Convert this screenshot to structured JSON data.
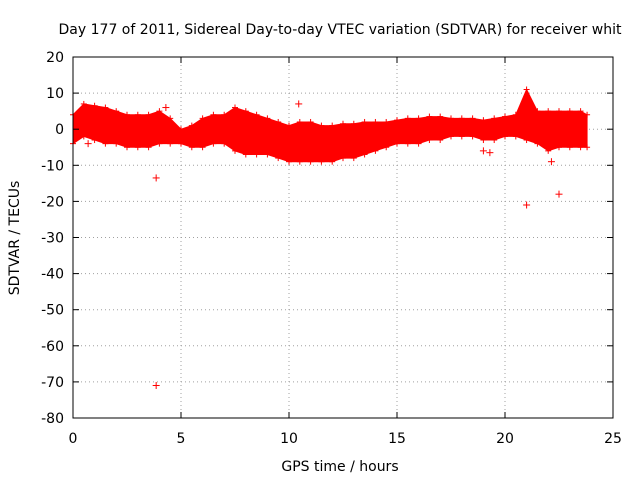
{
  "chart_data": {
    "type": "scatter",
    "title": "Day 177 of 2011, Sidereal Day-to-day VTEC variation (SDTVAR) for receiver whit",
    "xlabel": "GPS time / hours",
    "ylabel": "SDTVAR / TECUs",
    "xlim": [
      0,
      25
    ],
    "ylim": [
      -80,
      20
    ],
    "x_ticks": [
      0,
      5,
      10,
      15,
      20,
      25
    ],
    "y_ticks": [
      -80,
      -70,
      -60,
      -50,
      -40,
      -30,
      -20,
      -10,
      0,
      10,
      20
    ],
    "grid": true,
    "marker": "+",
    "color": "#ff0000",
    "band": {
      "x": [
        0,
        0.5,
        1.0,
        1.5,
        2.0,
        2.5,
        3.0,
        3.5,
        4.0,
        4.5,
        5.0,
        5.5,
        6.0,
        6.5,
        7.0,
        7.5,
        8.0,
        8.5,
        9.0,
        9.5,
        10.0,
        10.5,
        11.0,
        11.5,
        12.0,
        12.5,
        13.0,
        13.5,
        14.0,
        14.5,
        15.0,
        15.5,
        16.0,
        16.5,
        17.0,
        17.5,
        18.0,
        18.5,
        19.0,
        19.5,
        20.0,
        20.5,
        21.0,
        21.5,
        22.0,
        22.5,
        23.0,
        23.5,
        23.8
      ],
      "upper": [
        4,
        7,
        6.5,
        6,
        5,
        4,
        4,
        4,
        5,
        3,
        0,
        1,
        3,
        4,
        4,
        6,
        5,
        4,
        3,
        2,
        1,
        2,
        2,
        1,
        1,
        1.5,
        1.5,
        2,
        2,
        2,
        2.5,
        3,
        3,
        3.5,
        3.5,
        3,
        3,
        3,
        2.5,
        3,
        3.5,
        4,
        11,
        5,
        5,
        5,
        5,
        5,
        4
      ],
      "lower": [
        -4,
        -2,
        -3,
        -4,
        -4,
        -5,
        -5,
        -5,
        -4,
        -4,
        -4,
        -5,
        -5,
        -4,
        -4,
        -6,
        -7,
        -7,
        -7,
        -8,
        -9,
        -9,
        -9,
        -9,
        -9,
        -8,
        -8,
        -7,
        -6,
        -5,
        -4,
        -4,
        -4,
        -3,
        -3,
        -2,
        -2,
        -2,
        -3,
        -3,
        -2,
        -2,
        -3,
        -4,
        -6,
        -5,
        -5,
        -5,
        -5
      ]
    },
    "outliers": [
      {
        "x": 3.85,
        "y": -71
      },
      {
        "x": 3.85,
        "y": -13.5
      },
      {
        "x": 21.0,
        "y": -21
      },
      {
        "x": 22.5,
        "y": -18
      },
      {
        "x": 22.15,
        "y": -9
      },
      {
        "x": 19.3,
        "y": -6.5
      },
      {
        "x": 19.0,
        "y": -6
      },
      {
        "x": 0.7,
        "y": -4
      },
      {
        "x": 4.3,
        "y": 6
      },
      {
        "x": 10.45,
        "y": 7
      },
      {
        "x": 21.0,
        "y": 7
      }
    ]
  }
}
